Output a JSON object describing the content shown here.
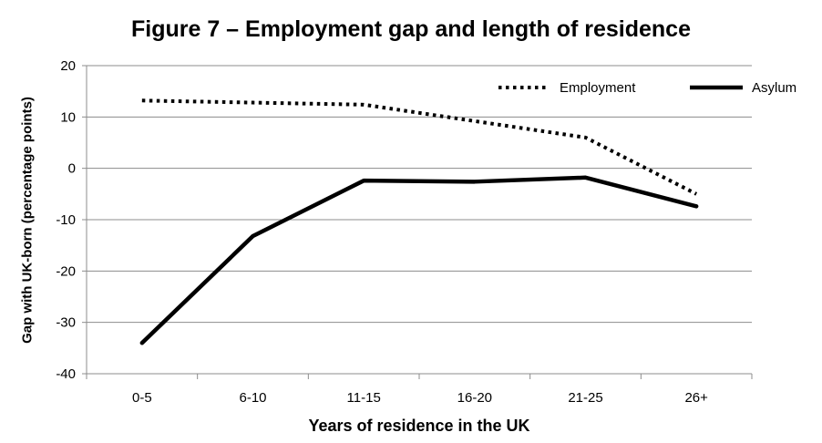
{
  "chart_data": {
    "type": "line",
    "title": "Figure 7 – Employment gap and length of residence",
    "xlabel": "Years of residence in the UK",
    "ylabel": "Gap with UK-born (percentage points)",
    "categories": [
      "0-5",
      "6-10",
      "11-15",
      "16-20",
      "21-25",
      "26+"
    ],
    "ylim": [
      -40,
      20
    ],
    "yticks": [
      20,
      10,
      0,
      -10,
      -20,
      -30,
      -40
    ],
    "grid": true,
    "legend_position": "top-right",
    "series": [
      {
        "name": "Employment",
        "style": "dotted",
        "color": "#000000",
        "values": [
          13.2,
          12.8,
          12.4,
          9.2,
          6.0,
          -5.0
        ]
      },
      {
        "name": "Asylum",
        "style": "solid",
        "color": "#000000",
        "values": [
          -34.0,
          -13.2,
          -2.4,
          -2.6,
          -1.8,
          -7.4
        ]
      }
    ]
  }
}
